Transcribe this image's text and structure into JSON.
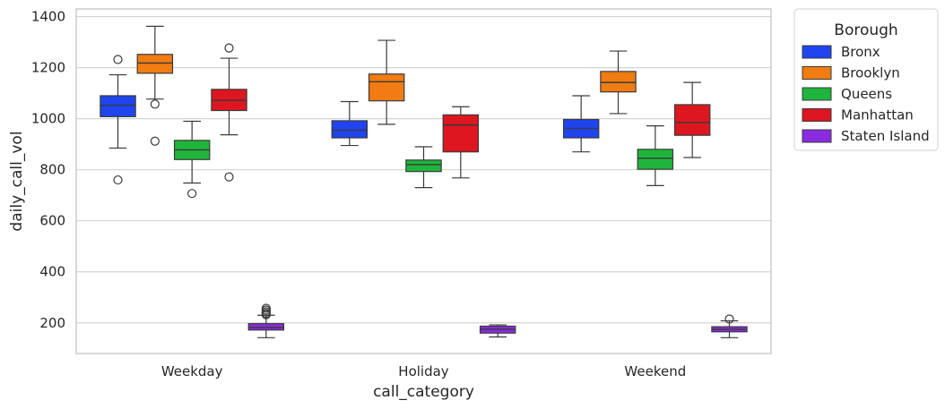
{
  "chart_data": {
    "type": "boxplot",
    "xlabel": "call_category",
    "ylabel": "daily_call_vol",
    "categories": [
      "Weekday",
      "Holiday",
      "Weekend"
    ],
    "ylim": [
      80,
      1430
    ],
    "yticks": [
      200,
      400,
      600,
      800,
      1000,
      1200,
      1400
    ],
    "grid": "horizontal",
    "legend": {
      "title": "Borough",
      "placement": "outside-right-top"
    },
    "series": [
      {
        "name": "Bronx",
        "color": "#1f45f0",
        "boxes": [
          {
            "category": "Weekday",
            "whisker_low": 885,
            "q1": 1008,
            "median": 1052,
            "q3": 1090,
            "whisker_high": 1172,
            "outliers": [
              1232,
              760
            ]
          },
          {
            "category": "Holiday",
            "whisker_low": 895,
            "q1": 925,
            "median": 955,
            "q3": 992,
            "whisker_high": 1067,
            "outliers": []
          },
          {
            "category": "Weekend",
            "whisker_low": 870,
            "q1": 925,
            "median": 962,
            "q3": 997,
            "whisker_high": 1090,
            "outliers": []
          }
        ]
      },
      {
        "name": "Brooklyn",
        "color": "#f07c12",
        "boxes": [
          {
            "category": "Weekday",
            "whisker_low": 1077,
            "q1": 1178,
            "median": 1218,
            "q3": 1252,
            "whisker_high": 1362,
            "outliers": [
              1057,
              912
            ]
          },
          {
            "category": "Holiday",
            "whisker_low": 978,
            "q1": 1070,
            "median": 1145,
            "q3": 1175,
            "whisker_high": 1307,
            "outliers": []
          },
          {
            "category": "Weekend",
            "whisker_low": 1020,
            "q1": 1105,
            "median": 1142,
            "q3": 1185,
            "whisker_high": 1265,
            "outliers": []
          }
        ]
      },
      {
        "name": "Queens",
        "color": "#1fb53c",
        "boxes": [
          {
            "category": "Weekday",
            "whisker_low": 748,
            "q1": 840,
            "median": 878,
            "q3": 915,
            "whisker_high": 990,
            "outliers": [
              707
            ]
          },
          {
            "category": "Holiday",
            "whisker_low": 730,
            "q1": 793,
            "median": 820,
            "q3": 838,
            "whisker_high": 890,
            "outliers": []
          },
          {
            "category": "Weekend",
            "whisker_low": 738,
            "q1": 802,
            "median": 845,
            "q3": 880,
            "whisker_high": 972,
            "outliers": []
          }
        ]
      },
      {
        "name": "Manhattan",
        "color": "#dd1620",
        "boxes": [
          {
            "category": "Weekday",
            "whisker_low": 937,
            "q1": 1032,
            "median": 1072,
            "q3": 1115,
            "whisker_high": 1237,
            "outliers": [
              1277,
              772
            ]
          },
          {
            "category": "Holiday",
            "whisker_low": 768,
            "q1": 870,
            "median": 975,
            "q3": 1015,
            "whisker_high": 1047,
            "outliers": []
          },
          {
            "category": "Weekend",
            "whisker_low": 848,
            "q1": 935,
            "median": 985,
            "q3": 1055,
            "whisker_high": 1142,
            "outliers": []
          }
        ]
      },
      {
        "name": "Staten Island",
        "color": "#8b2be0",
        "boxes": [
          {
            "category": "Weekday",
            "whisker_low": 142,
            "q1": 172,
            "median": 182,
            "q3": 197,
            "whisker_high": 230,
            "outliers": [
              257,
              250,
              243,
              237,
              232
            ]
          },
          {
            "category": "Holiday",
            "whisker_low": 145,
            "q1": 160,
            "median": 175,
            "q3": 187,
            "whisker_high": 192,
            "outliers": []
          },
          {
            "category": "Weekend",
            "whisker_low": 142,
            "q1": 165,
            "median": 175,
            "q3": 185,
            "whisker_high": 208,
            "outliers": [
              215
            ]
          }
        ]
      }
    ]
  }
}
